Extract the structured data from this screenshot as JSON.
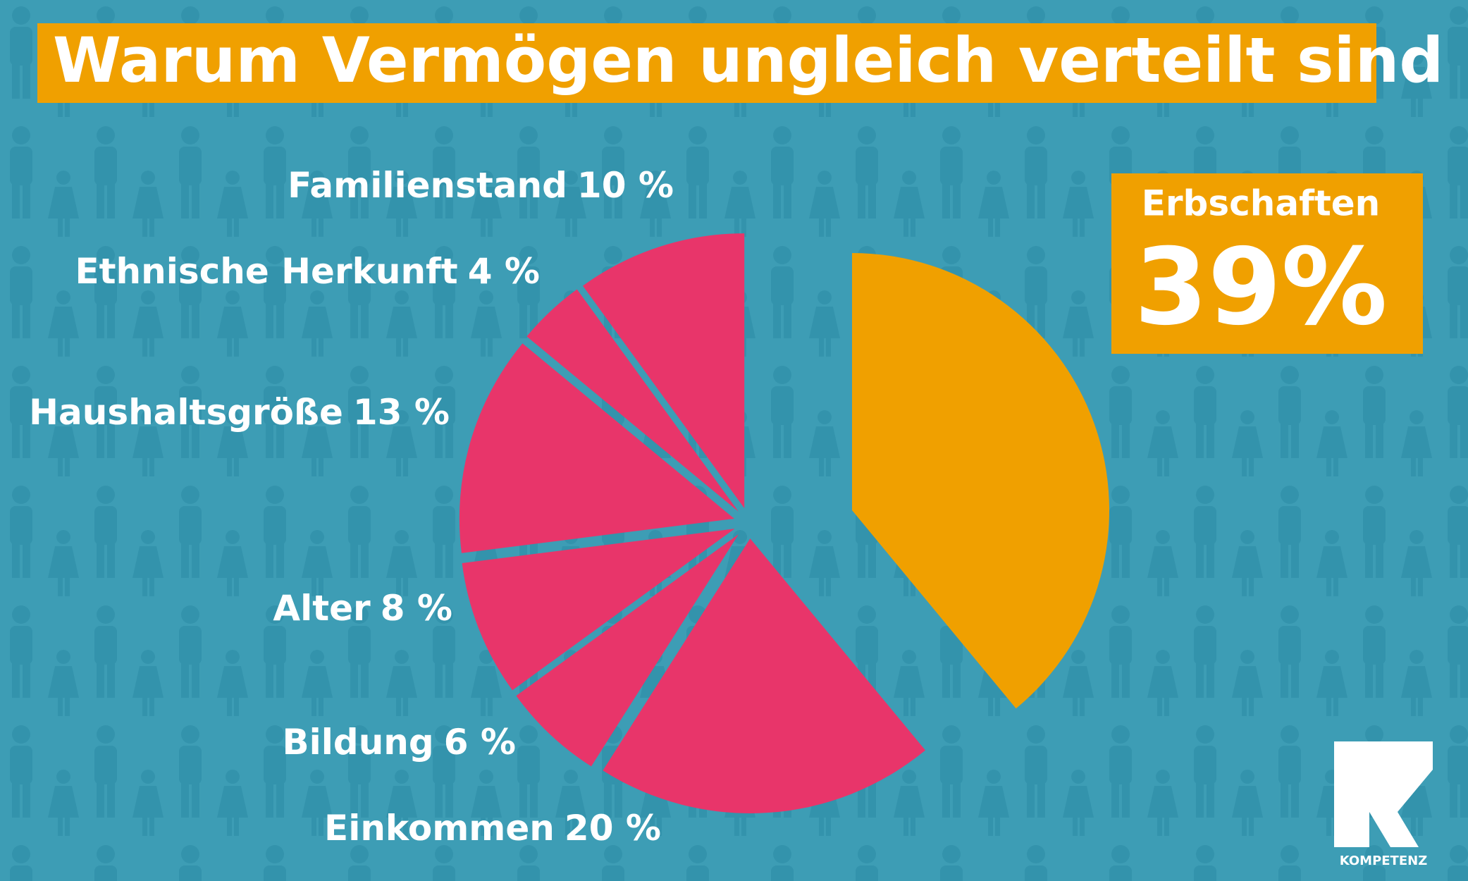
{
  "chart_data": {
    "type": "pie",
    "title": "Warum Vermögen ungleich verteilt sind",
    "categories": [
      "Erbschaften",
      "Einkommen",
      "Bildung",
      "Alter",
      "Haushaltsgröße",
      "Ethnische Herkunft",
      "Familienstand"
    ],
    "values": [
      39,
      20,
      6,
      8,
      13,
      4,
      10
    ],
    "value_labels": [
      "39%",
      "20 %",
      "6 %",
      "8 %",
      "13 %",
      "4 %",
      "10 %"
    ],
    "colors": [
      "#f0a000",
      "#e8356a",
      "#e8356a",
      "#e8356a",
      "#e8356a",
      "#e8356a",
      "#e8356a"
    ],
    "logo": "KOMPETENZ"
  }
}
